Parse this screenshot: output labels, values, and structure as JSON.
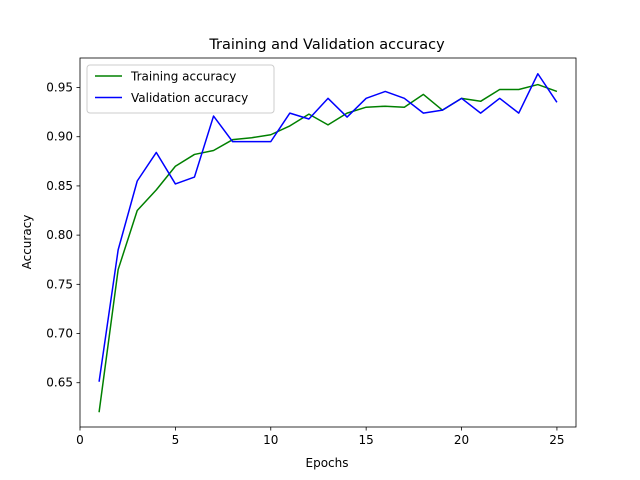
{
  "chart_data": {
    "type": "line",
    "title": "Training and Validation accuracy",
    "xlabel": "Epochs",
    "ylabel": "Accuracy",
    "xlim": [
      0,
      26
    ],
    "ylim": [
      0.605,
      0.98
    ],
    "xticks": [
      0,
      5,
      10,
      15,
      20,
      25
    ],
    "yticks": [
      0.65,
      0.7,
      0.75,
      0.8,
      0.85,
      0.9,
      0.95
    ],
    "ytick_labels": [
      "0.65",
      "0.70",
      "0.75",
      "0.80",
      "0.85",
      "0.90",
      "0.95"
    ],
    "grid": false,
    "legend": "top-left",
    "x": [
      1,
      2,
      3,
      4,
      5,
      6,
      7,
      8,
      9,
      10,
      11,
      12,
      13,
      14,
      15,
      16,
      17,
      18,
      19,
      20,
      21,
      22,
      23,
      24,
      25
    ],
    "series": [
      {
        "name": "Training accuracy",
        "color": "#008000",
        "values": [
          0.62,
          0.765,
          0.825,
          0.846,
          0.87,
          0.882,
          0.886,
          0.897,
          0.899,
          0.902,
          0.911,
          0.923,
          0.912,
          0.924,
          0.93,
          0.931,
          0.93,
          0.943,
          0.927,
          0.939,
          0.936,
          0.948,
          0.948,
          0.953,
          0.946
        ]
      },
      {
        "name": "Validation accuracy",
        "color": "#0000ff",
        "values": [
          0.651,
          0.785,
          0.855,
          0.884,
          0.852,
          0.859,
          0.921,
          0.895,
          0.895,
          0.895,
          0.924,
          0.918,
          0.939,
          0.92,
          0.939,
          0.946,
          0.939,
          0.924,
          0.927,
          0.939,
          0.924,
          0.939,
          0.924,
          0.964,
          0.935
        ]
      }
    ]
  }
}
